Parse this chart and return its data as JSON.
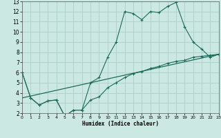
{
  "xlabel": "Humidex (Indice chaleur)",
  "bg_color": "#cce8e2",
  "grid_color": "#aed0c8",
  "line_color": "#1a6b5a",
  "xlim": [
    0,
    23
  ],
  "ylim": [
    2,
    13
  ],
  "xticks": [
    0,
    1,
    2,
    3,
    4,
    5,
    6,
    7,
    8,
    9,
    10,
    11,
    12,
    13,
    14,
    15,
    16,
    17,
    18,
    19,
    20,
    21,
    22,
    23
  ],
  "yticks": [
    2,
    3,
    4,
    5,
    6,
    7,
    8,
    9,
    10,
    11,
    12,
    13
  ],
  "line1_x": [
    0,
    1,
    2,
    3,
    4,
    5,
    6,
    7,
    8,
    9,
    10,
    11,
    12,
    13,
    14,
    15,
    16,
    17,
    18,
    19,
    20,
    21,
    22,
    23
  ],
  "line1_y": [
    6.0,
    3.5,
    2.8,
    3.2,
    3.3,
    1.7,
    2.3,
    2.3,
    5.0,
    5.5,
    7.5,
    9.0,
    12.0,
    11.8,
    11.2,
    12.0,
    11.9,
    12.5,
    12.9,
    10.5,
    9.0,
    8.3,
    7.5,
    7.8
  ],
  "line2_x": [
    0,
    1,
    2,
    3,
    4,
    5,
    6,
    7,
    8,
    9,
    10,
    11,
    12,
    13,
    14,
    15,
    16,
    17,
    18,
    19,
    20,
    21,
    22,
    23
  ],
  "line2_y": [
    6.0,
    3.5,
    2.8,
    3.2,
    3.3,
    1.7,
    2.3,
    2.3,
    3.3,
    3.6,
    4.5,
    5.0,
    5.5,
    5.9,
    6.1,
    6.4,
    6.6,
    6.9,
    7.1,
    7.2,
    7.5,
    7.6,
    7.7,
    7.8
  ],
  "line3_x": [
    0,
    23
  ],
  "line3_y": [
    3.5,
    7.8
  ]
}
